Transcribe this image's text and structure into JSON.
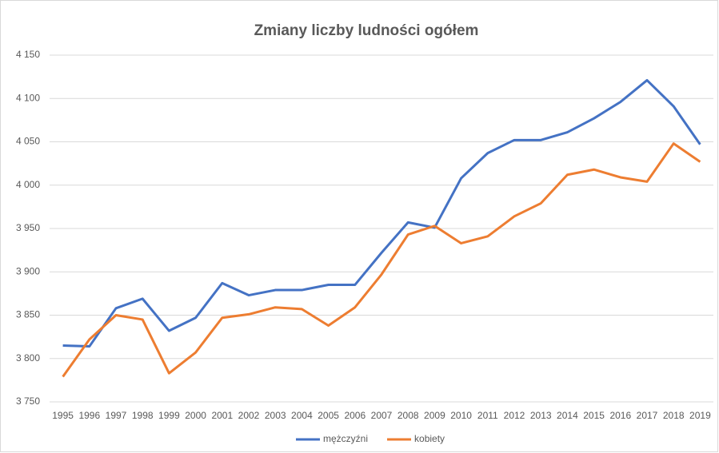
{
  "chart_data": {
    "type": "line",
    "title": "Zmiany liczby ludności ogółem",
    "categories": [
      "1995",
      "1996",
      "1997",
      "1998",
      "1999",
      "2000",
      "2001",
      "2002",
      "2003",
      "2004",
      "2005",
      "2006",
      "2007",
      "2008",
      "2009",
      "2010",
      "2011",
      "2012",
      "2013",
      "2014",
      "2015",
      "2016",
      "2017",
      "2018",
      "2019"
    ],
    "series": [
      {
        "name": "mężczyźni",
        "color": "#4472c4",
        "values": [
          3815,
          3814,
          3858,
          3869,
          3832,
          3847,
          3887,
          3873,
          3879,
          3879,
          3885,
          3885,
          3922,
          3957,
          3951,
          4008,
          4037,
          4052,
          4052,
          4061,
          4077,
          4096,
          4121,
          4091,
          4047
        ]
      },
      {
        "name": "kobiety",
        "color": "#ed7d31",
        "values": [
          3779,
          3822,
          3850,
          3845,
          3783,
          3807,
          3847,
          3851,
          3859,
          3857,
          3838,
          3859,
          3897,
          3943,
          3953,
          3933,
          3941,
          3964,
          3979,
          4012,
          4018,
          4009,
          4004,
          4048,
          4027
        ]
      }
    ],
    "ylim": [
      3750,
      4150
    ],
    "yticks": [
      {
        "value": 3750,
        "label": "3 750"
      },
      {
        "value": 3800,
        "label": "3 800"
      },
      {
        "value": 3850,
        "label": "3 850"
      },
      {
        "value": 3900,
        "label": "3 900"
      },
      {
        "value": 3950,
        "label": "3 950"
      },
      {
        "value": 4000,
        "label": "4 000"
      },
      {
        "value": 4050,
        "label": "4 050"
      },
      {
        "value": 4100,
        "label": "4 100"
      },
      {
        "value": 4150,
        "label": "4 150"
      }
    ],
    "grid": true,
    "legend": "bottom"
  }
}
